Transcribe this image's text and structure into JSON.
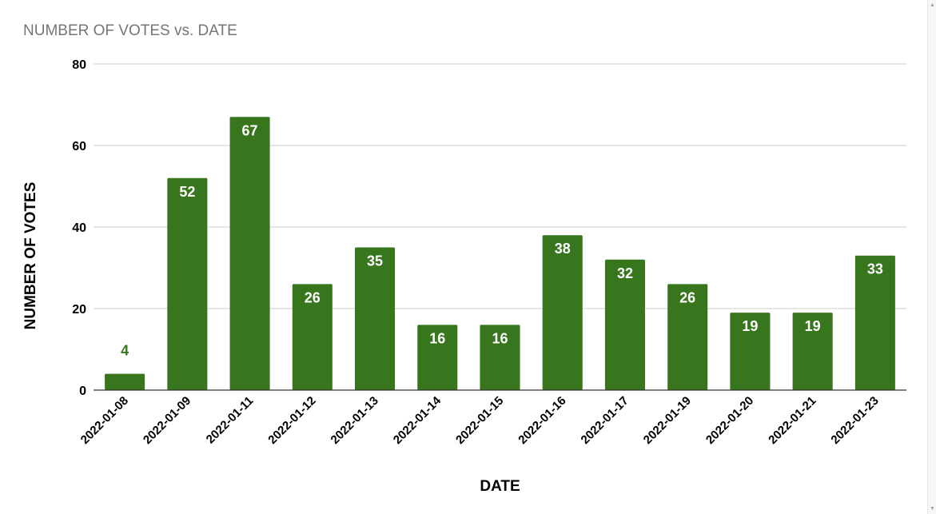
{
  "chart_data": {
    "type": "bar",
    "title": "NUMBER OF VOTES vs. DATE",
    "xlabel": "DATE",
    "ylabel": "NUMBER OF VOTES",
    "ylim": [
      0,
      80
    ],
    "yticks": [
      "0",
      "20",
      "40",
      "60",
      "80"
    ],
    "categories": [
      "2022-01-08",
      "2022-01-09",
      "2022-01-11",
      "2022-01-12",
      "2022-01-13",
      "2022-01-14",
      "2022-01-15",
      "2022-01-16",
      "2022-01-17",
      "2022-01-19",
      "2022-01-20",
      "2022-01-21",
      "2022-01-23"
    ],
    "values": [
      4,
      52,
      67,
      26,
      35,
      16,
      16,
      38,
      32,
      26,
      19,
      19,
      33
    ],
    "grid": true,
    "legend": "none",
    "colors": {
      "bar": "#38761d",
      "inside_label": "#ffffff",
      "outside_label": "#38761d",
      "grid": "#cccccc",
      "axis": "#333333"
    }
  }
}
